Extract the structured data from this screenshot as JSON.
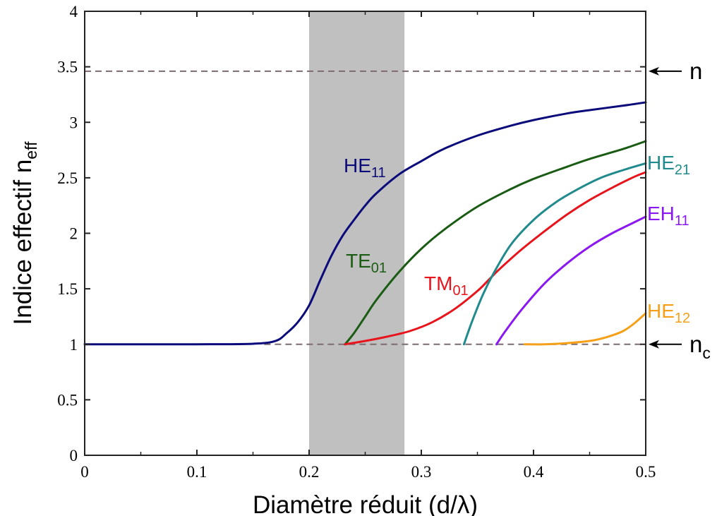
{
  "chart_data": {
    "type": "line",
    "title": "",
    "xlabel": "Diamètre réduit (d/λ)",
    "ylabel_main": "Indice effectif n",
    "ylabel_sub": "eff",
    "xlim": [
      0,
      0.5
    ],
    "ylim": [
      0,
      4
    ],
    "x_ticks": [
      0,
      0.1,
      0.2,
      0.3,
      0.4,
      0.5
    ],
    "x_tick_labels": [
      "0",
      "0.1",
      "0.2",
      "0.3",
      "0.4",
      "0.5"
    ],
    "y_ticks": [
      0,
      0.5,
      1,
      1.5,
      2,
      2.5,
      3,
      3.5,
      4
    ],
    "y_tick_labels": [
      "0",
      "0.5",
      "1",
      "1.5",
      "2",
      "2.5",
      "3",
      "3.5",
      "4"
    ],
    "grid": false,
    "shaded_band": {
      "x_range": [
        0.2,
        0.285
      ],
      "color": "#c0c0c0"
    },
    "reference_lines": [
      {
        "y": 3.46,
        "label": "n",
        "label_sub": "",
        "color": "#7d6b71"
      },
      {
        "y": 1.0,
        "label": "n",
        "label_sub": "c",
        "color": "#7d6b71",
        "x_start": 0.16
      }
    ],
    "series": [
      {
        "name": "HE",
        "name_sub": "11",
        "color": "#0a0a7a",
        "x": [
          0,
          0.05,
          0.1,
          0.15,
          0.17,
          0.18,
          0.19,
          0.2,
          0.21,
          0.22,
          0.23,
          0.24,
          0.25,
          0.26,
          0.28,
          0.3,
          0.32,
          0.35,
          0.38,
          0.4,
          0.43,
          0.45,
          0.48,
          0.5
        ],
        "y": [
          1.0,
          1.0,
          1.0,
          1.005,
          1.03,
          1.1,
          1.2,
          1.35,
          1.58,
          1.8,
          1.98,
          2.12,
          2.25,
          2.36,
          2.53,
          2.65,
          2.76,
          2.88,
          2.97,
          3.02,
          3.08,
          3.11,
          3.15,
          3.18
        ]
      },
      {
        "name": "TE",
        "name_sub": "01",
        "color": "#1a5c14",
        "x": [
          0.232,
          0.24,
          0.25,
          0.26,
          0.28,
          0.3,
          0.32,
          0.35,
          0.38,
          0.4,
          0.43,
          0.45,
          0.48,
          0.5
        ],
        "y": [
          1.0,
          1.1,
          1.25,
          1.4,
          1.65,
          1.86,
          2.03,
          2.24,
          2.4,
          2.49,
          2.6,
          2.67,
          2.76,
          2.83
        ]
      },
      {
        "name": "TM",
        "name_sub": "01",
        "color": "#e8141c",
        "x": [
          0.232,
          0.25,
          0.27,
          0.29,
          0.31,
          0.33,
          0.35,
          0.36,
          0.37,
          0.39,
          0.41,
          0.43,
          0.45,
          0.47,
          0.49,
          0.5
        ],
        "y": [
          1.0,
          1.03,
          1.07,
          1.12,
          1.2,
          1.32,
          1.48,
          1.58,
          1.68,
          1.86,
          2.02,
          2.17,
          2.3,
          2.41,
          2.51,
          2.55
        ]
      },
      {
        "name": "HE",
        "name_sub": "21",
        "color": "#218a8c",
        "x": [
          0.338,
          0.345,
          0.355,
          0.365,
          0.38,
          0.4,
          0.42,
          0.44,
          0.46,
          0.48,
          0.5
        ],
        "y": [
          1.0,
          1.2,
          1.45,
          1.65,
          1.9,
          2.12,
          2.28,
          2.4,
          2.5,
          2.57,
          2.63
        ]
      },
      {
        "name": "EH",
        "name_sub": "11",
        "color": "#8a18f0",
        "x": [
          0.367,
          0.375,
          0.39,
          0.41,
          0.43,
          0.45,
          0.47,
          0.49,
          0.5
        ],
        "y": [
          1.0,
          1.12,
          1.32,
          1.55,
          1.73,
          1.88,
          2.0,
          2.1,
          2.15
        ]
      },
      {
        "name": "HE",
        "name_sub": "12",
        "color": "#f5a018",
        "x": [
          0.392,
          0.41,
          0.43,
          0.45,
          0.46,
          0.47,
          0.48,
          0.49,
          0.5
        ],
        "y": [
          1.0,
          1.0,
          1.01,
          1.03,
          1.05,
          1.08,
          1.12,
          1.19,
          1.28
        ]
      }
    ]
  }
}
